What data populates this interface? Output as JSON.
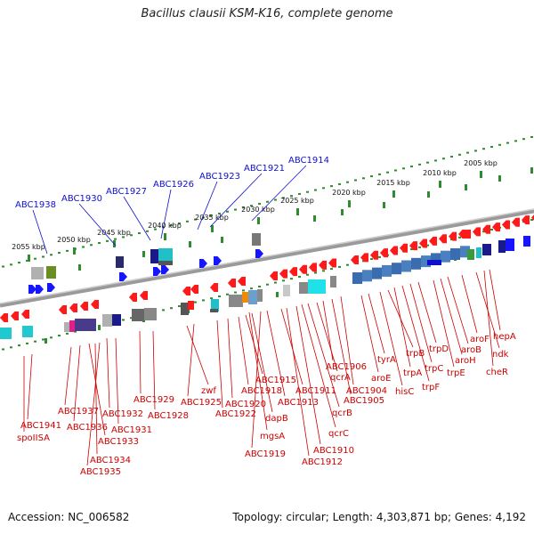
{
  "title": "Bacillus clausii KSM-K16, complete genome",
  "accession_text": "Accession: NC_006582",
  "summary_text": "Topology: circular; Length: 4,303,871 bp; Genes: 4,192",
  "ruler": {
    "unit": "kbp",
    "ticks": [
      2005,
      2010,
      2015,
      2020,
      2025,
      2030,
      2035,
      2040,
      2045,
      2050,
      2055
    ],
    "tick_labels": [
      "2005 kbp",
      "2010 kbp",
      "2015 kbp",
      "2020 kbp",
      "2025 kbp",
      "2030 kbp",
      "2035 kbp",
      "2040 kbp",
      "2045 kbp",
      "2050 kbp",
      "2055 kbp"
    ]
  },
  "colors": {
    "forward_strand_label": "#1010cc",
    "reverse_strand_label": "#cc0000",
    "forward_gene": "#1515ff",
    "reverse_gene": "#ff1a1a",
    "backbone": "#888888",
    "ruler_dots": "#2e8b2e"
  },
  "forward_gene_labels": [
    "ABC1938",
    "ABC1930",
    "ABC1927",
    "ABC1926",
    "ABC1923",
    "ABC1921",
    "ABC1914"
  ],
  "reverse_gene_labels": [
    "ABC1941",
    "spoIISA",
    "ABC1937",
    "ABC1936",
    "ABC1933",
    "ABC1934",
    "ABC1935",
    "ABC1932",
    "ABC1931",
    "ABC1929",
    "ABC1928",
    "zwf",
    "ABC1925",
    "ABC1922",
    "ABC1920",
    "ABC1918",
    "ABC1915",
    "dapB",
    "mgsA",
    "ABC1919",
    "ABC1913",
    "ABC1911",
    "ABC1912",
    "ABC1910",
    "qcrC",
    "qcrB",
    "qcrA",
    "ABC1906",
    "ABC1905",
    "ABC1904",
    "aroE",
    "tyrA",
    "hisC",
    "trpB",
    "trpA",
    "trpF",
    "trpC",
    "trpD",
    "trpE",
    "aroH",
    "aroB",
    "aroF",
    "ndk",
    "cheR",
    "hepA"
  ]
}
